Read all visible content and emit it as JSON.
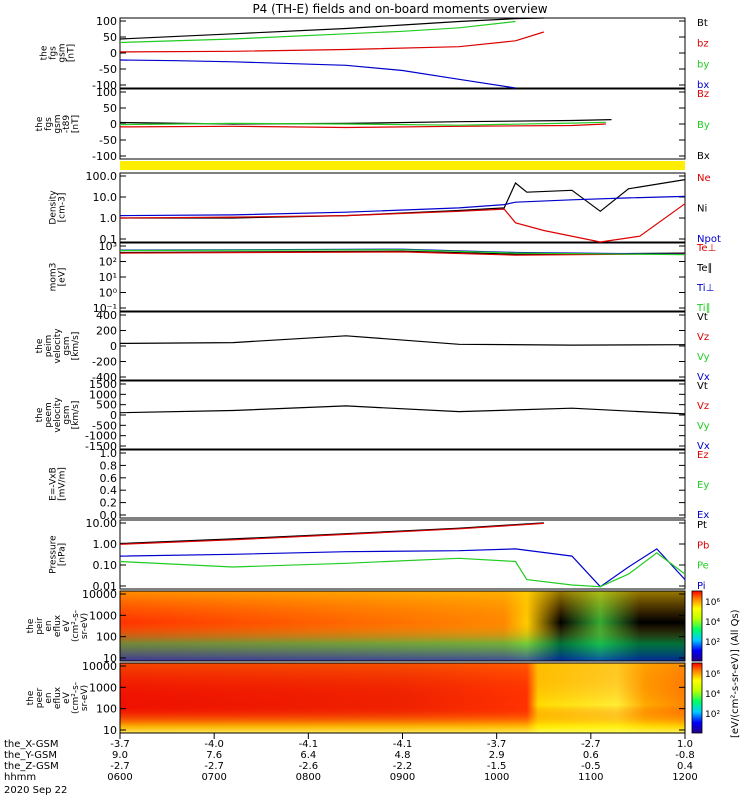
{
  "title": "P4 (TH-E) fields and on-board moments overview",
  "colors": {
    "black": "#000000",
    "red": "#dd0000",
    "green": "#22cc22",
    "blue": "#0000cc",
    "yellow": "#ffee00"
  },
  "chart_data": [
    {
      "type": "line",
      "ylabel": [
        "the",
        "fgs",
        "gsm",
        "[nT]"
      ],
      "yticks": [
        "100",
        "50",
        "0",
        "-50",
        "-100"
      ],
      "ylim": [
        -100,
        100
      ],
      "legend": [
        {
          "name": "Bt",
          "color": "black"
        },
        {
          "name": "bz",
          "color": "red"
        },
        {
          "name": "by",
          "color": "green"
        },
        {
          "name": "bx",
          "color": "blue"
        }
      ],
      "series": [
        {
          "name": "Bt",
          "x": [
            0,
            0.2,
            0.4,
            0.5,
            0.6,
            0.7,
            0.75
          ],
          "y": [
            40,
            55,
            70,
            80,
            90,
            98,
            100
          ]
        },
        {
          "name": "bz",
          "x": [
            0,
            0.2,
            0.4,
            0.6,
            0.7,
            0.75
          ],
          "y": [
            3,
            5,
            10,
            18,
            35,
            60
          ]
        },
        {
          "name": "by",
          "x": [
            0,
            0.2,
            0.4,
            0.5,
            0.6,
            0.7
          ],
          "y": [
            30,
            40,
            55,
            62,
            72,
            90
          ]
        },
        {
          "name": "bx",
          "x": [
            0,
            0.1,
            0.2,
            0.4,
            0.5,
            0.6,
            0.7
          ],
          "y": [
            -20,
            -22,
            -25,
            -35,
            -50,
            -75,
            -100
          ]
        }
      ]
    },
    {
      "type": "line",
      "ylabel": [
        "the",
        "fgs",
        "gsm",
        "-t89",
        "[nT]"
      ],
      "yticks": [
        "100",
        "50",
        "0",
        "-50",
        "-100"
      ],
      "ylim": [
        -120,
        120
      ],
      "legend": [
        {
          "name": "Bz",
          "color": "red"
        },
        {
          "name": "By",
          "color": "green"
        },
        {
          "name": "Bx",
          "color": "black"
        }
      ],
      "series": [
        {
          "name": "Bx",
          "x": [
            0,
            0.2,
            0.4,
            0.6,
            0.8,
            0.87
          ],
          "y": [
            5,
            0,
            2,
            8,
            12,
            15
          ]
        },
        {
          "name": "Bz",
          "x": [
            0,
            0.2,
            0.4,
            0.6,
            0.8,
            0.86
          ],
          "y": [
            -10,
            -8,
            -12,
            -8,
            -5,
            0
          ]
        },
        {
          "name": "By",
          "x": [
            0,
            0.2,
            0.4,
            0.6,
            0.8,
            0.86
          ],
          "y": [
            -2,
            2,
            0,
            -4,
            3,
            6
          ]
        }
      ]
    },
    {
      "type": "line",
      "ylabel": [
        "Density",
        "[cm-3]"
      ],
      "yticks": [
        "100.0",
        "10.0",
        "1.0",
        "0.1"
      ],
      "ylim": [
        0.05,
        200
      ],
      "yscale": "log",
      "legend": [
        {
          "name": "Ne",
          "color": "red"
        },
        {
          "name": "Ni",
          "color": "black"
        },
        {
          "name": "Npot",
          "color": "blue"
        }
      ],
      "series": [
        {
          "name": "Ni",
          "x": [
            0,
            0.2,
            0.4,
            0.6,
            0.68,
            0.7,
            0.72,
            0.8,
            0.85,
            0.9,
            1
          ],
          "y": [
            0.9,
            0.9,
            1.2,
            2.2,
            3,
            60,
            20,
            25,
            2,
            30,
            90
          ]
        },
        {
          "name": "Ne",
          "x": [
            0,
            0.2,
            0.4,
            0.6,
            0.68,
            0.7,
            0.75,
            0.85,
            0.92,
            1
          ],
          "y": [
            0.9,
            1,
            1.2,
            2.0,
            2.6,
            0.5,
            0.2,
            0.04,
            0.1,
            5
          ]
        },
        {
          "name": "Npot",
          "x": [
            0,
            0.2,
            0.4,
            0.6,
            0.68,
            0.7,
            0.8,
            0.9,
            1
          ],
          "y": [
            1.2,
            1.3,
            1.8,
            3,
            4.5,
            6,
            8,
            10,
            12
          ]
        }
      ]
    },
    {
      "type": "line",
      "ylabel": [
        "mom3",
        "[eV]"
      ],
      "yticks": [
        "10³",
        "10²",
        "10¹",
        "10⁰",
        "10⁻¹"
      ],
      "ylim": [
        0.1,
        10000
      ],
      "yscale": "log",
      "legend": [
        {
          "name": "Te⊥",
          "color": "red"
        },
        {
          "name": "Te∥",
          "color": "black"
        },
        {
          "name": "Ti⊥",
          "color": "blue"
        },
        {
          "name": "Ti∥",
          "color": "green"
        }
      ],
      "series": [
        {
          "name": "Te∥",
          "x": [
            0,
            0.5,
            0.7,
            1
          ],
          "y": [
            2000,
            2500,
            1500,
            1800
          ]
        },
        {
          "name": "Te⊥",
          "x": [
            0,
            0.5,
            0.7,
            1
          ],
          "y": [
            1800,
            2200,
            1300,
            1600
          ]
        },
        {
          "name": "Ti⊥",
          "x": [
            0,
            0.5,
            0.7,
            1
          ],
          "y": [
            3000,
            3500,
            2000,
            1500
          ]
        },
        {
          "name": "Ti∥",
          "x": [
            0,
            0.5,
            0.7,
            1
          ],
          "y": [
            2800,
            3200,
            1800,
            1400
          ]
        }
      ]
    },
    {
      "type": "line",
      "ylabel": [
        "the",
        "peim",
        "velocity",
        "gsm",
        "[km/s]"
      ],
      "yticks": [
        "400",
        "200",
        "0",
        "-200",
        "-400"
      ],
      "ylim": [
        -400,
        400
      ],
      "legend": [
        {
          "name": "Vt",
          "color": "black"
        },
        {
          "name": "Vz",
          "color": "red"
        },
        {
          "name": "Vy",
          "color": "green"
        },
        {
          "name": "Vx",
          "color": "blue"
        }
      ],
      "series": [
        {
          "name": "Vt",
          "x": [
            0,
            0.2,
            0.4,
            0.6,
            0.8,
            1
          ],
          "y": [
            30,
            40,
            120,
            20,
            10,
            15
          ]
        }
      ]
    },
    {
      "type": "line",
      "ylabel": [
        "the",
        "peem",
        "velocity",
        "gsm",
        "[km/s]"
      ],
      "yticks": [
        "1500",
        "1000",
        "500",
        "0",
        "-500",
        "-1000",
        "-1500"
      ],
      "ylim": [
        -1500,
        1500
      ],
      "legend": [
        {
          "name": "Vt",
          "color": "black"
        },
        {
          "name": "Vz",
          "color": "red"
        },
        {
          "name": "Vy",
          "color": "green"
        },
        {
          "name": "Vx",
          "color": "blue"
        }
      ],
      "series": [
        {
          "name": "Vt",
          "x": [
            0,
            0.2,
            0.4,
            0.6,
            0.8,
            1
          ],
          "y": [
            100,
            200,
            400,
            150,
            300,
            50
          ]
        }
      ]
    },
    {
      "type": "line",
      "ylabel": [
        "E=-VxB",
        "[mV/m]"
      ],
      "yticks": [
        "1.0",
        "0.8",
        "0.6",
        "0.4",
        "0.2",
        "0.0"
      ],
      "ylim": [
        0,
        1
      ],
      "legend": [
        {
          "name": "Ez",
          "color": "red"
        },
        {
          "name": "Ey",
          "color": "green"
        },
        {
          "name": "Ex",
          "color": "blue"
        }
      ],
      "series": []
    },
    {
      "type": "line",
      "ylabel": [
        "Pressure",
        "[nPa]"
      ],
      "yticks": [
        "10.00",
        "1.00",
        "0.10",
        "0.01"
      ],
      "ylim": [
        0.003,
        20
      ],
      "yscale": "log",
      "legend": [
        {
          "name": "Pt",
          "color": "black"
        },
        {
          "name": "Pb",
          "color": "red"
        },
        {
          "name": "Pe",
          "color": "green"
        },
        {
          "name": "Pi",
          "color": "blue"
        }
      ],
      "series": [
        {
          "name": "Pt",
          "x": [
            0,
            0.2,
            0.4,
            0.6,
            0.75
          ],
          "y": [
            1.0,
            1.8,
            3.5,
            7,
            14
          ]
        },
        {
          "name": "Pb",
          "x": [
            0,
            0.2,
            0.4,
            0.6,
            0.75
          ],
          "y": [
            0.9,
            1.6,
            3.2,
            6.5,
            13
          ]
        },
        {
          "name": "Pi",
          "x": [
            0,
            0.2,
            0.4,
            0.6,
            0.7,
            0.8,
            0.85,
            0.9,
            0.95,
            1
          ],
          "y": [
            0.2,
            0.25,
            0.35,
            0.4,
            0.5,
            0.2,
            0.004,
            0.05,
            0.5,
            0.01
          ]
        },
        {
          "name": "Pe",
          "x": [
            0,
            0.2,
            0.4,
            0.6,
            0.7,
            0.72,
            0.8,
            0.85,
            0.9,
            0.95,
            1
          ],
          "y": [
            0.1,
            0.05,
            0.08,
            0.15,
            0.1,
            0.01,
            0.005,
            0.004,
            0.02,
            0.3,
            0.02
          ]
        }
      ]
    },
    {
      "type": "heatmap",
      "ylabel": [
        "the",
        "peir",
        "en",
        "eflux",
        "eV",
        "(cm²-s-",
        "sr-eV)"
      ],
      "yticks": [
        "10000",
        "1000",
        "100",
        "10"
      ],
      "colorbar_label": "[eV/(cm²-s-sr-eV)] (All Qs)",
      "colorbar_ticks": [
        "10⁶",
        "10⁴",
        "10²"
      ]
    },
    {
      "type": "heatmap",
      "ylabel": [
        "the",
        "peer",
        "en",
        "eflux",
        "eV",
        "(cm²-s-",
        "sr-eV)"
      ],
      "yticks": [
        "10000",
        "1000",
        "100",
        "10"
      ],
      "colorbar_label": "[eV/(cm²-s-sr-eV)] (All Qs)",
      "colorbar_ticks": [
        "10⁶",
        "10⁴",
        "10²"
      ]
    }
  ],
  "x_axis": {
    "rows": [
      {
        "label": "the_X-GSM",
        "values": [
          "-3.7",
          "-4.0",
          "-4.1",
          "-4.1",
          "-3.7",
          "-2.7",
          "1.0"
        ]
      },
      {
        "label": "the_Y-GSM",
        "values": [
          "9.0",
          "7.6",
          "6.4",
          "4.8",
          "2.9",
          "0.6",
          "-0.8"
        ]
      },
      {
        "label": "the_Z-GSM",
        "values": [
          "-2.7",
          "-2.7",
          "-2.6",
          "-2.2",
          "-1.5",
          "-0.5",
          "0.4"
        ]
      },
      {
        "label": "hhmm",
        "values": [
          "0600",
          "0700",
          "0800",
          "0900",
          "1000",
          "1100",
          "1200"
        ]
      }
    ],
    "date": "2020 Sep 22"
  }
}
